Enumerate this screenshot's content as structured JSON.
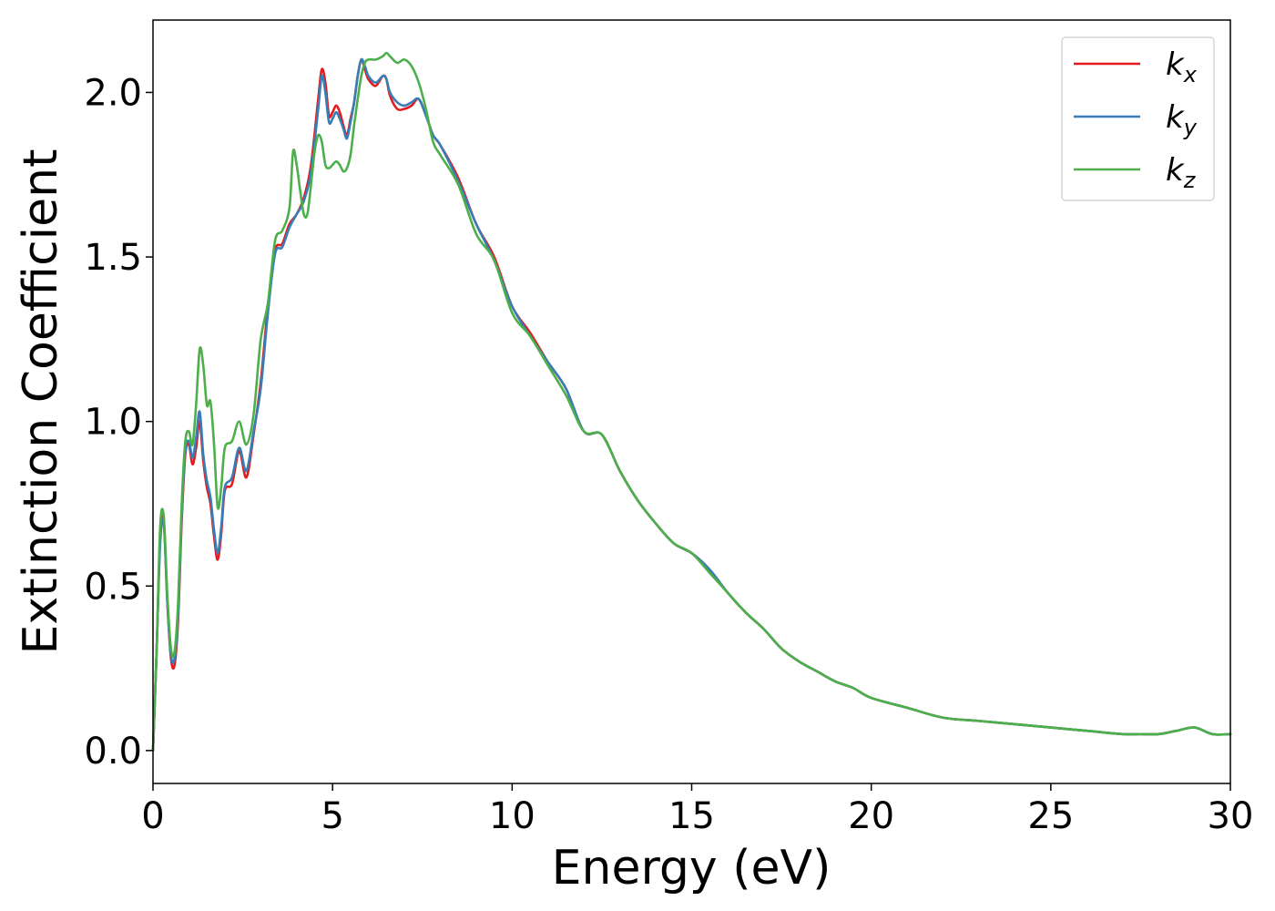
{
  "chart_data": {
    "type": "line",
    "xlabel": "Energy (eV)",
    "ylabel": "Extinction Coefficient",
    "xlim": [
      0,
      30
    ],
    "ylim": [
      -0.1,
      2.22
    ],
    "xticks": [
      0,
      5,
      10,
      15,
      20,
      25,
      30
    ],
    "xtick_labels": [
      "0",
      "5",
      "10",
      "15",
      "20",
      "25",
      "30"
    ],
    "yticks": [
      0.0,
      0.5,
      1.0,
      1.5,
      2.0
    ],
    "ytick_labels": [
      "0.0",
      "0.5",
      "1.0",
      "1.5",
      "2.0"
    ],
    "grid": false,
    "legend_position": "top-right",
    "series": [
      {
        "name": "k_x",
        "label_main": "k",
        "label_sub": "x",
        "color": "#e41a1c",
        "x": [
          0.0,
          0.1,
          0.2,
          0.3,
          0.4,
          0.5,
          0.6,
          0.7,
          0.8,
          0.9,
          1.0,
          1.1,
          1.2,
          1.3,
          1.4,
          1.5,
          1.6,
          1.7,
          1.8,
          1.9,
          2.0,
          2.2,
          2.4,
          2.6,
          2.8,
          3.0,
          3.2,
          3.4,
          3.6,
          3.8,
          4.0,
          4.2,
          4.4,
          4.6,
          4.7,
          4.8,
          4.9,
          5.0,
          5.1,
          5.2,
          5.3,
          5.4,
          5.5,
          5.6,
          5.7,
          5.8,
          5.9,
          6.0,
          6.2,
          6.4,
          6.5,
          6.6,
          6.8,
          7.0,
          7.2,
          7.4,
          7.6,
          7.8,
          8.0,
          8.5,
          9.0,
          9.5,
          10.0,
          10.5,
          11.0,
          11.5,
          12.0,
          12.5,
          13.0,
          13.5,
          14.0,
          14.5,
          15.0,
          15.5,
          16.0,
          16.5,
          17.0,
          17.5,
          18.0,
          18.5,
          19.0,
          19.5,
          20.0,
          21.0,
          22.0,
          23.0,
          24.0,
          25.0,
          26.0,
          27.0,
          27.5,
          28.0,
          28.5,
          29.0,
          29.5,
          30.0
        ],
        "y": [
          0.0,
          0.3,
          0.65,
          0.7,
          0.45,
          0.28,
          0.26,
          0.4,
          0.7,
          0.9,
          0.93,
          0.87,
          0.92,
          1.0,
          0.88,
          0.8,
          0.75,
          0.65,
          0.58,
          0.66,
          0.79,
          0.81,
          0.91,
          0.83,
          0.96,
          1.12,
          1.35,
          1.52,
          1.54,
          1.6,
          1.63,
          1.68,
          1.78,
          1.98,
          2.07,
          2.03,
          1.93,
          1.94,
          1.96,
          1.94,
          1.9,
          1.87,
          1.92,
          1.97,
          2.05,
          2.1,
          2.07,
          2.04,
          2.02,
          2.05,
          2.04,
          1.99,
          1.95,
          1.95,
          1.96,
          1.98,
          1.93,
          1.87,
          1.84,
          1.74,
          1.6,
          1.5,
          1.35,
          1.27,
          1.18,
          1.1,
          0.97,
          0.96,
          0.85,
          0.76,
          0.69,
          0.63,
          0.6,
          0.55,
          0.48,
          0.42,
          0.37,
          0.31,
          0.27,
          0.24,
          0.21,
          0.19,
          0.16,
          0.13,
          0.1,
          0.09,
          0.08,
          0.07,
          0.06,
          0.05,
          0.05,
          0.05,
          0.06,
          0.07,
          0.05,
          0.05
        ]
      },
      {
        "name": "k_y",
        "label_main": "k",
        "label_sub": "y",
        "color": "#377eb8",
        "x": [
          0.0,
          0.1,
          0.2,
          0.3,
          0.4,
          0.5,
          0.6,
          0.7,
          0.8,
          0.9,
          1.0,
          1.1,
          1.2,
          1.3,
          1.4,
          1.5,
          1.6,
          1.7,
          1.8,
          1.9,
          2.0,
          2.2,
          2.4,
          2.6,
          2.8,
          3.0,
          3.2,
          3.4,
          3.6,
          3.8,
          4.0,
          4.2,
          4.4,
          4.6,
          4.7,
          4.8,
          4.9,
          5.0,
          5.1,
          5.2,
          5.3,
          5.4,
          5.5,
          5.6,
          5.7,
          5.8,
          5.9,
          6.0,
          6.2,
          6.4,
          6.5,
          6.6,
          6.8,
          7.0,
          7.2,
          7.4,
          7.6,
          7.8,
          8.0,
          8.5,
          9.0,
          9.5,
          10.0,
          10.5,
          11.0,
          11.5,
          12.0,
          12.5,
          13.0,
          13.5,
          14.0,
          14.5,
          15.0,
          15.5,
          16.0,
          16.5,
          17.0,
          17.5,
          18.0,
          18.5,
          19.0,
          19.5,
          20.0,
          21.0,
          22.0,
          23.0,
          24.0,
          25.0,
          26.0,
          27.0,
          27.5,
          28.0,
          28.5,
          29.0,
          29.5,
          30.0
        ],
        "y": [
          0.0,
          0.3,
          0.63,
          0.69,
          0.45,
          0.29,
          0.28,
          0.42,
          0.72,
          0.91,
          0.94,
          0.89,
          0.95,
          1.03,
          0.9,
          0.82,
          0.77,
          0.67,
          0.6,
          0.68,
          0.8,
          0.83,
          0.92,
          0.85,
          0.97,
          1.1,
          1.33,
          1.51,
          1.53,
          1.59,
          1.63,
          1.67,
          1.76,
          1.95,
          2.05,
          2.0,
          1.91,
          1.92,
          1.94,
          1.92,
          1.89,
          1.86,
          1.91,
          1.97,
          2.05,
          2.1,
          2.08,
          2.05,
          2.03,
          2.05,
          2.04,
          2.0,
          1.97,
          1.96,
          1.97,
          1.98,
          1.93,
          1.87,
          1.84,
          1.73,
          1.6,
          1.49,
          1.35,
          1.26,
          1.18,
          1.1,
          0.97,
          0.96,
          0.85,
          0.76,
          0.69,
          0.63,
          0.6,
          0.55,
          0.48,
          0.42,
          0.37,
          0.31,
          0.27,
          0.24,
          0.21,
          0.19,
          0.16,
          0.13,
          0.1,
          0.09,
          0.08,
          0.07,
          0.06,
          0.05,
          0.05,
          0.05,
          0.06,
          0.07,
          0.05,
          0.05
        ]
      },
      {
        "name": "k_z",
        "label_main": "k",
        "label_sub": "z",
        "color": "#4daf4a",
        "x": [
          0.0,
          0.1,
          0.2,
          0.3,
          0.4,
          0.5,
          0.6,
          0.7,
          0.8,
          0.9,
          1.0,
          1.1,
          1.2,
          1.3,
          1.4,
          1.5,
          1.6,
          1.7,
          1.8,
          1.9,
          2.0,
          2.2,
          2.4,
          2.6,
          2.8,
          3.0,
          3.2,
          3.4,
          3.6,
          3.8,
          3.9,
          4.0,
          4.1,
          4.2,
          4.3,
          4.4,
          4.5,
          4.6,
          4.7,
          4.8,
          4.9,
          5.0,
          5.1,
          5.2,
          5.3,
          5.4,
          5.5,
          5.6,
          5.7,
          5.8,
          5.9,
          6.0,
          6.2,
          6.4,
          6.5,
          6.6,
          6.8,
          7.0,
          7.2,
          7.4,
          7.6,
          7.8,
          8.0,
          8.5,
          9.0,
          9.5,
          10.0,
          10.5,
          11.0,
          11.5,
          12.0,
          12.5,
          13.0,
          13.5,
          14.0,
          14.5,
          15.0,
          15.5,
          16.0,
          16.5,
          17.0,
          17.5,
          18.0,
          18.5,
          19.0,
          19.5,
          20.0,
          21.0,
          22.0,
          23.0,
          24.0,
          25.0,
          26.0,
          27.0,
          27.5,
          28.0,
          28.5,
          29.0,
          29.5,
          30.0
        ],
        "y": [
          0.0,
          0.3,
          0.68,
          0.71,
          0.47,
          0.31,
          0.3,
          0.45,
          0.75,
          0.94,
          0.97,
          0.93,
          1.05,
          1.22,
          1.17,
          1.05,
          1.06,
          0.93,
          0.74,
          0.8,
          0.92,
          0.94,
          1.0,
          0.93,
          1.02,
          1.25,
          1.36,
          1.55,
          1.58,
          1.65,
          1.82,
          1.78,
          1.7,
          1.63,
          1.63,
          1.72,
          1.82,
          1.87,
          1.85,
          1.78,
          1.77,
          1.78,
          1.79,
          1.78,
          1.76,
          1.77,
          1.81,
          1.9,
          1.98,
          2.05,
          2.09,
          2.1,
          2.1,
          2.11,
          2.12,
          2.11,
          2.09,
          2.1,
          2.08,
          2.03,
          1.95,
          1.85,
          1.81,
          1.72,
          1.57,
          1.49,
          1.33,
          1.26,
          1.17,
          1.08,
          0.97,
          0.96,
          0.85,
          0.76,
          0.69,
          0.63,
          0.6,
          0.54,
          0.48,
          0.42,
          0.37,
          0.31,
          0.27,
          0.24,
          0.21,
          0.19,
          0.16,
          0.13,
          0.1,
          0.09,
          0.08,
          0.07,
          0.06,
          0.05,
          0.05,
          0.05,
          0.06,
          0.07,
          0.05,
          0.05
        ]
      }
    ]
  }
}
